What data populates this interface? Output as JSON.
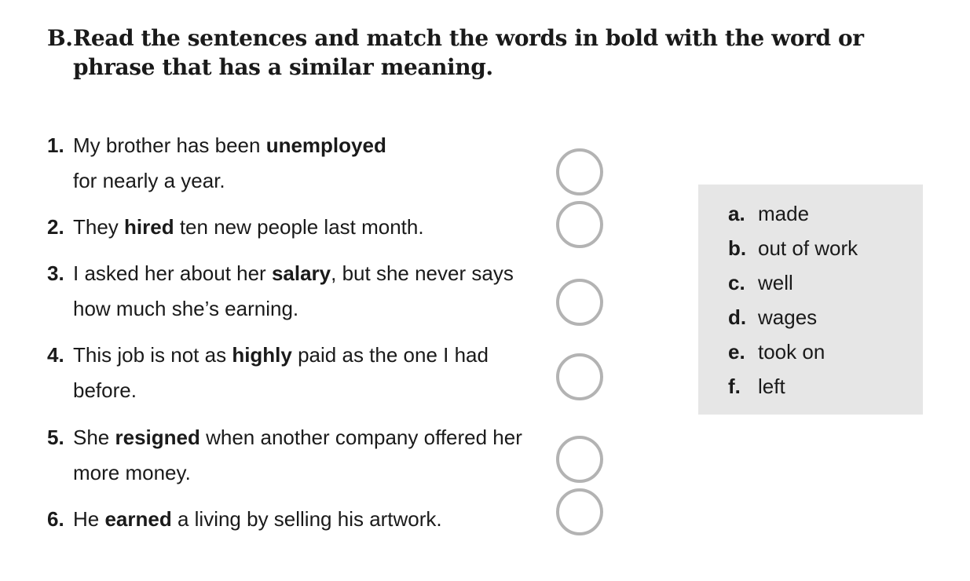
{
  "heading": {
    "letter": "B.",
    "text": "Read the sentences and match the words in bold with the word or phrase that has a similar meaning."
  },
  "items": [
    {
      "number": "1.",
      "before": "My brother has been ",
      "bold": "unemployed",
      "after": " for nearly a year."
    },
    {
      "number": "2.",
      "before": "They ",
      "bold": "hired",
      "after": " ten new people last month."
    },
    {
      "number": "3.",
      "before": "I asked her about her ",
      "bold": "salary",
      "after": ", but she never says how much she’s earning."
    },
    {
      "number": "4.",
      "before": "This job is not as ",
      "bold": "highly",
      "after": " paid as the one I had before."
    },
    {
      "number": "5.",
      "before": "She ",
      "bold": "resigned",
      "after": " when another company offered her more money."
    },
    {
      "number": "6.",
      "before": "He ",
      "bold": "earned",
      "after": " a living by selling his artwork."
    }
  ],
  "answers": [
    {
      "letter": "a.",
      "text": "made"
    },
    {
      "letter": "b.",
      "text": "out of work"
    },
    {
      "letter": "c.",
      "text": "well"
    },
    {
      "letter": "d.",
      "text": "wages"
    },
    {
      "letter": "e.",
      "text": "took on"
    },
    {
      "letter": "f.",
      "text": "left"
    }
  ],
  "colors": {
    "answer_box_bg": "#e6e6e6",
    "circle_border": "#b3b3b3",
    "text": "#1a1a1a"
  }
}
